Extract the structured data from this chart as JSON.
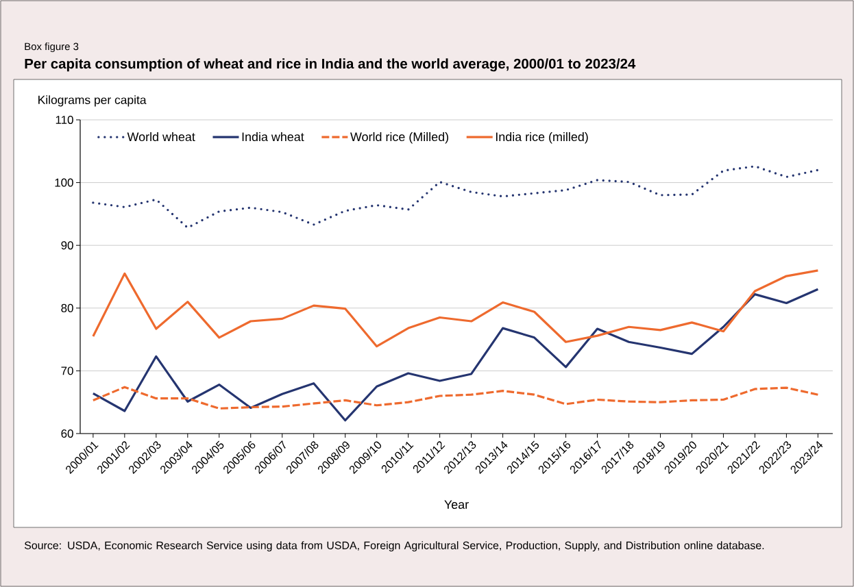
{
  "chart_data": {
    "type": "line",
    "title": "Per capita consumption of wheat and rice in India and the world average, 2000/01 to 2023/24",
    "ylabel": "Kilograms per capita",
    "xlabel": "Year",
    "annotations": [
      "Box figure 3",
      "Source: USDA, Economic Research Service using data from USDA, Foreign Agricultural Service, Production, Supply, and Distribution online database."
    ],
    "categories": [
      "2000/01",
      "2001/02",
      "2002/03",
      "2003/04",
      "2004/05",
      "2005/06",
      "2006/07",
      "2007/08",
      "2008/09",
      "2009/10",
      "2010/11",
      "2011/12",
      "2012/13",
      "2013/14",
      "2014/15",
      "2015/16",
      "2016/17",
      "2017/18",
      "2018/19",
      "2019/20",
      "2020/21",
      "2021/22",
      "2022/23",
      "2023/24"
    ],
    "series": [
      {
        "name": "World wheat",
        "color": "#253570",
        "line_style": "dotted",
        "values": [
          96.8,
          96.1,
          97.3,
          92.8,
          95.4,
          96.0,
          95.3,
          93.3,
          95.5,
          96.4,
          95.7,
          100.1,
          98.5,
          97.8,
          98.3,
          98.8,
          100.4,
          100.1,
          98.0,
          98.1,
          101.9,
          102.6,
          100.9,
          102.0
        ]
      },
      {
        "name": "India wheat",
        "color": "#253570",
        "line_style": "solid",
        "values": [
          66.4,
          63.6,
          72.3,
          65.1,
          67.8,
          64.1,
          66.3,
          68.0,
          62.1,
          67.5,
          69.6,
          68.4,
          69.5,
          76.8,
          75.3,
          70.6,
          76.7,
          74.6,
          73.7,
          72.7,
          77.0,
          82.2,
          80.8,
          83.0
        ]
      },
      {
        "name": "World rice (Milled)",
        "color": "#ee6a2e",
        "line_style": "dashed",
        "values": [
          65.3,
          67.4,
          65.6,
          65.6,
          64.0,
          64.2,
          64.3,
          64.8,
          65.3,
          64.5,
          65.0,
          66.0,
          66.2,
          66.8,
          66.2,
          64.7,
          65.4,
          65.1,
          65.0,
          65.3,
          65.4,
          67.1,
          67.3,
          66.2
        ]
      },
      {
        "name": "India rice (milled)",
        "color": "#ee6a2e",
        "line_style": "solid",
        "values": [
          75.5,
          85.5,
          76.7,
          81.0,
          75.3,
          77.9,
          78.3,
          80.4,
          79.9,
          73.9,
          76.8,
          78.5,
          77.9,
          80.9,
          79.4,
          74.6,
          75.6,
          77.0,
          76.5,
          77.7,
          76.3,
          82.7,
          85.1,
          86.0
        ]
      }
    ],
    "ylim": [
      60,
      110
    ],
    "yticks": [
      60,
      70,
      80,
      90,
      100,
      110
    ],
    "grid": "y",
    "legend": "top",
    "marker": "none"
  }
}
